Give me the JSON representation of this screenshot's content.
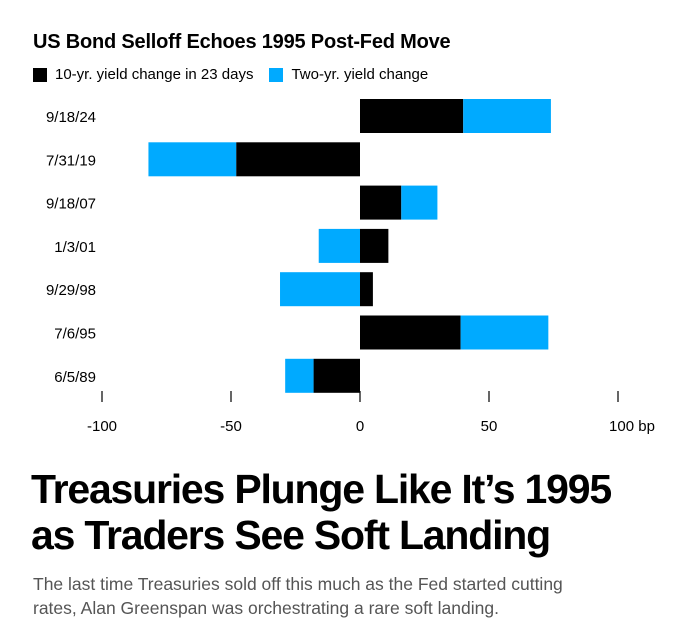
{
  "chart_data": {
    "type": "bar",
    "orientation": "horizontal",
    "stacking": "diverging-stacked",
    "title": "US Bond Selloff Echoes 1995 Post-Fed Move",
    "categories": [
      "9/18/24",
      "7/31/19",
      "9/18/07",
      "1/3/01",
      "9/29/98",
      "7/6/95",
      "6/5/89"
    ],
    "series": [
      {
        "name": "10-yr. yield change in 23 days",
        "color": "#000000",
        "values": [
          40,
          -48,
          16,
          11,
          5,
          39,
          -18
        ]
      },
      {
        "name": "Two-yr. yield change",
        "color": "#00aaff",
        "values": [
          34,
          -34,
          14,
          -16,
          -31,
          34,
          -11
        ]
      }
    ],
    "xlim": [
      -100,
      100
    ],
    "xticks": [
      -100,
      -50,
      0,
      50,
      100
    ],
    "xtick_labels": [
      "-100",
      "-50",
      "0",
      "50",
      "100 bp"
    ],
    "xlabel": "",
    "ylabel": "",
    "grid": false,
    "legend": "top-left"
  },
  "article": {
    "headline_lines": [
      "Treasuries Plunge Like It’s 1995",
      "as Traders See Soft Landing"
    ],
    "subhead_lines": [
      "The last time Treasuries sold off this much as the Fed started cutting",
      "rates, Alan Greenspan was orchestrating a rare soft landing."
    ]
  }
}
